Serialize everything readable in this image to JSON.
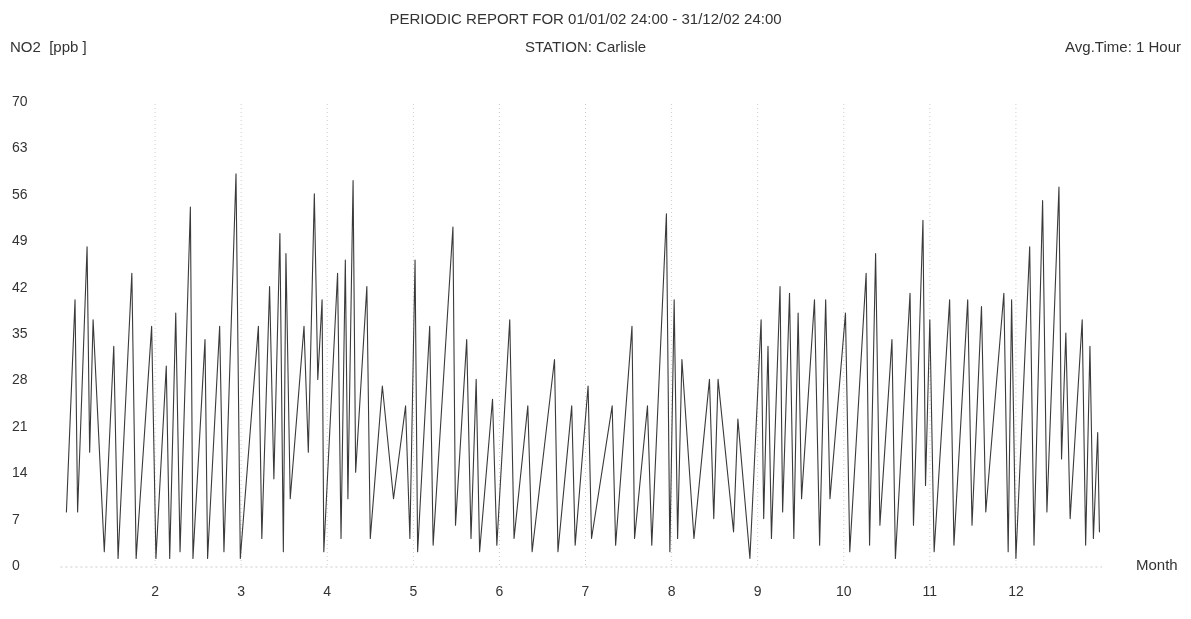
{
  "chart_data": {
    "type": "line",
    "title": "PERIODIC REPORT FOR 01/01/02 24:00 - 31/12/02 24:00",
    "subtitle": "STATION: Carlisle",
    "ylabel": "NO2  [ppb ]",
    "xlabel": "Month",
    "annotations": [
      "Avg.Time: 1 Hour"
    ],
    "xlim": [
      0.9,
      13
    ],
    "xticks": [
      2,
      3,
      4,
      5,
      6,
      7,
      8,
      9,
      10,
      11,
      12
    ],
    "ylim": [
      0,
      70
    ],
    "yticks": [
      0,
      7,
      14,
      21,
      28,
      35,
      42,
      49,
      56,
      63,
      70
    ],
    "grid": "x",
    "marker": "none",
    "line_style": "solid",
    "series": [
      {
        "color": "#3a3a3a",
        "x": [
          0.97,
          1.07,
          1.1,
          1.21,
          1.24,
          1.28,
          1.41,
          1.52,
          1.57,
          1.73,
          1.78,
          1.96,
          2.01,
          2.13,
          2.17,
          2.24,
          2.29,
          2.41,
          2.44,
          2.58,
          2.61,
          2.75,
          2.8,
          2.94,
          2.99,
          3.2,
          3.24,
          3.33,
          3.38,
          3.45,
          3.49,
          3.52,
          3.57,
          3.73,
          3.78,
          3.85,
          3.89,
          3.94,
          3.96,
          4.12,
          4.16,
          4.21,
          4.24,
          4.3,
          4.33,
          4.46,
          4.5,
          4.64,
          4.77,
          4.91,
          4.96,
          5.02,
          5.05,
          5.19,
          5.23,
          5.46,
          5.49,
          5.62,
          5.67,
          5.73,
          5.77,
          5.92,
          5.97,
          6.12,
          6.17,
          6.33,
          6.38,
          6.64,
          6.68,
          6.84,
          6.88,
          7.03,
          7.07,
          7.31,
          7.35,
          7.54,
          7.57,
          7.72,
          7.77,
          7.94,
          7.98,
          8.03,
          8.07,
          8.12,
          8.26,
          8.44,
          8.49,
          8.54,
          8.72,
          8.77,
          8.91,
          9.04,
          9.07,
          9.12,
          9.16,
          9.26,
          9.29,
          9.37,
          9.42,
          9.47,
          9.51,
          9.66,
          9.72,
          9.79,
          9.84,
          10.02,
          10.07,
          10.26,
          10.3,
          10.37,
          10.42,
          10.56,
          10.6,
          10.77,
          10.81,
          10.92,
          10.95,
          11.0,
          11.05,
          11.23,
          11.28,
          11.44,
          11.49,
          11.6,
          11.65,
          11.86,
          11.91,
          11.95,
          12.0,
          12.16,
          12.21,
          12.31,
          12.36,
          12.5,
          12.53,
          12.58,
          12.63,
          12.77,
          12.81,
          12.86,
          12.9,
          12.95,
          12.97
        ],
        "values": [
          8,
          40,
          8,
          48,
          17,
          37,
          2,
          33,
          1,
          44,
          1,
          36,
          1,
          30,
          1,
          38,
          2,
          54,
          1,
          34,
          1,
          36,
          2,
          59,
          1,
          36,
          4,
          42,
          13,
          50,
          2,
          47,
          10,
          36,
          17,
          56,
          28,
          40,
          2,
          44,
          4,
          46,
          10,
          58,
          14,
          42,
          4,
          27,
          10,
          24,
          4,
          46,
          2,
          36,
          3,
          51,
          6,
          34,
          4,
          28,
          2,
          25,
          3,
          37,
          4,
          24,
          2,
          31,
          2,
          24,
          3,
          27,
          4,
          24,
          3,
          36,
          4,
          24,
          3,
          53,
          2,
          40,
          4,
          31,
          4,
          28,
          7,
          28,
          5,
          22,
          1,
          37,
          7,
          33,
          4,
          42,
          8,
          41,
          4,
          38,
          10,
          40,
          3,
          40,
          10,
          38,
          2,
          44,
          3,
          47,
          6,
          34,
          1,
          41,
          6,
          52,
          12,
          37,
          2,
          40,
          3,
          40,
          6,
          39,
          8,
          41,
          2,
          40,
          1,
          48,
          3,
          55,
          8,
          57,
          16,
          35,
          7,
          37,
          3,
          33,
          4,
          20,
          5
        ]
      }
    ]
  }
}
